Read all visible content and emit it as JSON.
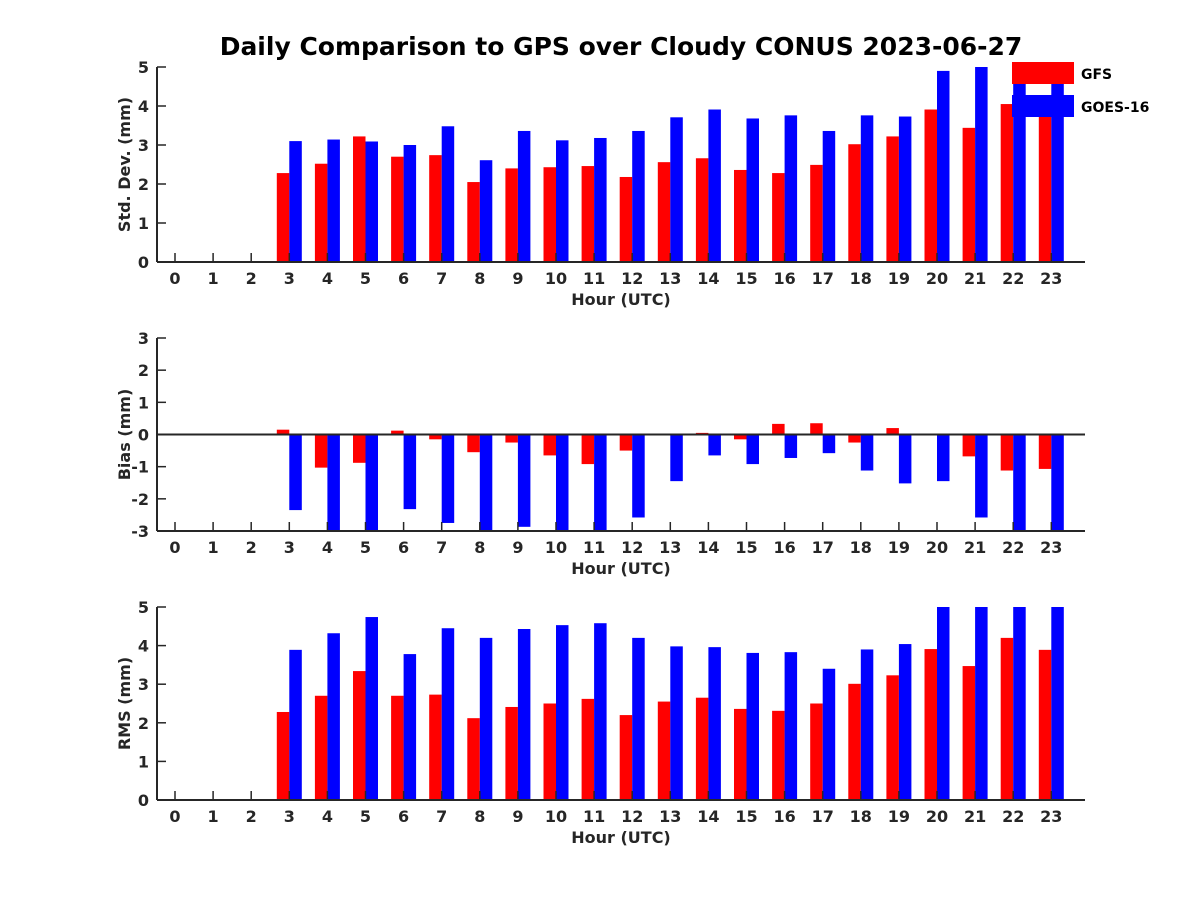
{
  "title": "Daily Comparison to GPS over Cloudy CONUS 2023-06-27",
  "legend": [
    {
      "name": "GFS",
      "color": "#ff0000"
    },
    {
      "name": "GOES-16",
      "color": "#0000ff"
    }
  ],
  "chart_data": [
    {
      "type": "bar",
      "ylabel": "Std. Dev. (mm)",
      "xlabel": "Hour (UTC)",
      "ylim": [
        0,
        5
      ],
      "yticks": [
        0,
        1,
        2,
        3,
        4,
        5
      ],
      "x": [
        0,
        1,
        2,
        3,
        4,
        5,
        6,
        7,
        8,
        9,
        10,
        11,
        12,
        13,
        14,
        15,
        16,
        17,
        18,
        19,
        20,
        21,
        22,
        23
      ],
      "series": [
        {
          "name": "GFS",
          "color": "#ff0000",
          "values": [
            null,
            null,
            null,
            2.28,
            2.52,
            3.22,
            2.7,
            2.74,
            2.05,
            2.4,
            2.43,
            2.46,
            2.18,
            2.56,
            2.66,
            2.36,
            2.28,
            2.49,
            3.02,
            3.22,
            3.91,
            3.44,
            4.05,
            3.85
          ]
        },
        {
          "name": "GOES-16",
          "color": "#0000ff",
          "values": [
            null,
            null,
            null,
            3.1,
            3.14,
            3.09,
            3.0,
            3.48,
            2.61,
            3.36,
            3.12,
            3.18,
            3.36,
            3.71,
            3.91,
            3.68,
            3.76,
            3.36,
            3.76,
            3.73,
            4.9,
            5.0,
            5.0,
            4.6
          ]
        }
      ]
    },
    {
      "type": "bar",
      "ylabel": "Bias (mm)",
      "xlabel": "Hour (UTC)",
      "ylim": [
        -3,
        3
      ],
      "yticks": [
        -3,
        -2,
        -1,
        0,
        1,
        2,
        3
      ],
      "x": [
        0,
        1,
        2,
        3,
        4,
        5,
        6,
        7,
        8,
        9,
        10,
        11,
        12,
        13,
        14,
        15,
        16,
        17,
        18,
        19,
        20,
        21,
        22,
        23
      ],
      "series": [
        {
          "name": "GFS",
          "color": "#ff0000",
          "values": [
            null,
            null,
            null,
            0.15,
            -1.03,
            -0.88,
            0.12,
            -0.15,
            -0.55,
            -0.25,
            -0.65,
            -0.92,
            -0.5,
            -0.02,
            0.05,
            -0.15,
            0.33,
            0.35,
            -0.25,
            0.2,
            0.0,
            -0.68,
            -1.12,
            -1.07
          ]
        },
        {
          "name": "GOES-16",
          "color": "#0000ff",
          "values": [
            null,
            null,
            null,
            -2.35,
            -3.0,
            -3.0,
            -2.32,
            -2.75,
            -3.0,
            -2.87,
            -3.0,
            -3.0,
            -2.58,
            -1.45,
            -0.65,
            -0.92,
            -0.73,
            -0.58,
            -1.12,
            -1.52,
            -1.45,
            -2.58,
            -3.0,
            -3.0
          ]
        }
      ]
    },
    {
      "type": "bar",
      "ylabel": "RMS (mm)",
      "xlabel": "Hour (UTC)",
      "ylim": [
        0,
        5
      ],
      "yticks": [
        0,
        1,
        2,
        3,
        4,
        5
      ],
      "x": [
        0,
        1,
        2,
        3,
        4,
        5,
        6,
        7,
        8,
        9,
        10,
        11,
        12,
        13,
        14,
        15,
        16,
        17,
        18,
        19,
        20,
        21,
        22,
        23
      ],
      "series": [
        {
          "name": "GFS",
          "color": "#ff0000",
          "values": [
            null,
            null,
            null,
            2.28,
            2.7,
            3.34,
            2.7,
            2.73,
            2.12,
            2.41,
            2.5,
            2.62,
            2.2,
            2.55,
            2.65,
            2.36,
            2.31,
            2.5,
            3.01,
            3.23,
            3.91,
            3.47,
            4.2,
            3.89
          ]
        },
        {
          "name": "GOES-16",
          "color": "#0000ff",
          "values": [
            null,
            null,
            null,
            3.89,
            4.32,
            4.74,
            3.78,
            4.45,
            4.2,
            4.43,
            4.53,
            4.58,
            4.2,
            3.98,
            3.96,
            3.81,
            3.83,
            3.4,
            3.9,
            4.04,
            5.0,
            5.0,
            5.0,
            5.0
          ]
        }
      ]
    }
  ]
}
